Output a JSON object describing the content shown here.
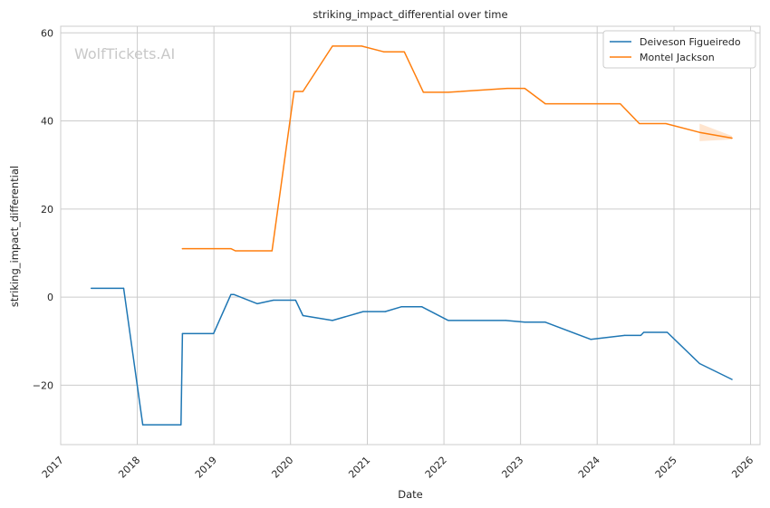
{
  "chart_data": {
    "type": "line",
    "title": "striking_impact_differential over time",
    "xlabel": "Date",
    "ylabel": "striking_impact_differential",
    "watermark": "WolfTickets.AI",
    "x_ticks": [
      "2017",
      "2018",
      "2019",
      "2020",
      "2021",
      "2022",
      "2023",
      "2024",
      "2025",
      "2026"
    ],
    "y_ticks": [
      -20,
      0,
      20,
      40,
      60
    ],
    "xlim": [
      "2017-01-01",
      "2026-02-15"
    ],
    "ylim": [
      -33.5,
      61.5
    ],
    "grid": true,
    "legend_position": "top-right",
    "series": [
      {
        "name": "Deiveson Figueiredo",
        "color": "#1f77b4",
        "points": [
          [
            "2017-05-27",
            2.0
          ],
          [
            "2017-10-28",
            2.0
          ],
          [
            "2018-01-27",
            -29.0
          ],
          [
            "2018-07-28",
            -29.0
          ],
          [
            "2018-08-04",
            -8.3
          ],
          [
            "2018-12-30",
            -8.3
          ],
          [
            "2019-03-23",
            0.6
          ],
          [
            "2019-04-06",
            0.6
          ],
          [
            "2019-07-27",
            -1.5
          ],
          [
            "2019-10-12",
            -0.7
          ],
          [
            "2020-01-25",
            -0.7
          ],
          [
            "2020-02-29",
            -4.2
          ],
          [
            "2020-07-19",
            -5.3
          ],
          [
            "2020-12-12",
            -3.3
          ],
          [
            "2021-03-27",
            -3.3
          ],
          [
            "2021-06-12",
            -2.2
          ],
          [
            "2021-09-18",
            -2.2
          ],
          [
            "2022-01-22",
            -5.3
          ],
          [
            "2022-10-22",
            -5.3
          ],
          [
            "2023-01-21",
            -5.7
          ],
          [
            "2023-04-29",
            -5.7
          ],
          [
            "2023-12-02",
            -9.6
          ],
          [
            "2024-05-11",
            -8.7
          ],
          [
            "2024-07-27",
            -8.7
          ],
          [
            "2024-08-10",
            -8.0
          ],
          [
            "2024-11-30",
            -8.0
          ],
          [
            "2025-05-03",
            -15.1
          ],
          [
            "2025-10-04",
            -18.7
          ]
        ]
      },
      {
        "name": "Montel Jackson",
        "color": "#ff7f0e",
        "points": [
          [
            "2018-08-04",
            11.0
          ],
          [
            "2019-03-23",
            11.0
          ],
          [
            "2019-04-13",
            10.5
          ],
          [
            "2019-10-05",
            10.5
          ],
          [
            "2020-01-18",
            46.7
          ],
          [
            "2020-02-29",
            46.7
          ],
          [
            "2020-07-19",
            57.0
          ],
          [
            "2020-12-05",
            57.0
          ],
          [
            "2021-03-20",
            55.7
          ],
          [
            "2021-06-26",
            55.7
          ],
          [
            "2021-09-25",
            46.5
          ],
          [
            "2022-01-22",
            46.5
          ],
          [
            "2022-10-29",
            47.4
          ],
          [
            "2023-01-21",
            47.4
          ],
          [
            "2023-04-29",
            43.9
          ],
          [
            "2024-04-20",
            43.9
          ],
          [
            "2024-07-20",
            39.4
          ],
          [
            "2024-11-23",
            39.4
          ],
          [
            "2025-05-03",
            37.4
          ],
          [
            "2025-10-04",
            36.1
          ]
        ],
        "band": [
          [
            "2025-05-03",
            35.4,
            39.4
          ],
          [
            "2025-10-04",
            35.8,
            36.6
          ]
        ]
      }
    ]
  }
}
